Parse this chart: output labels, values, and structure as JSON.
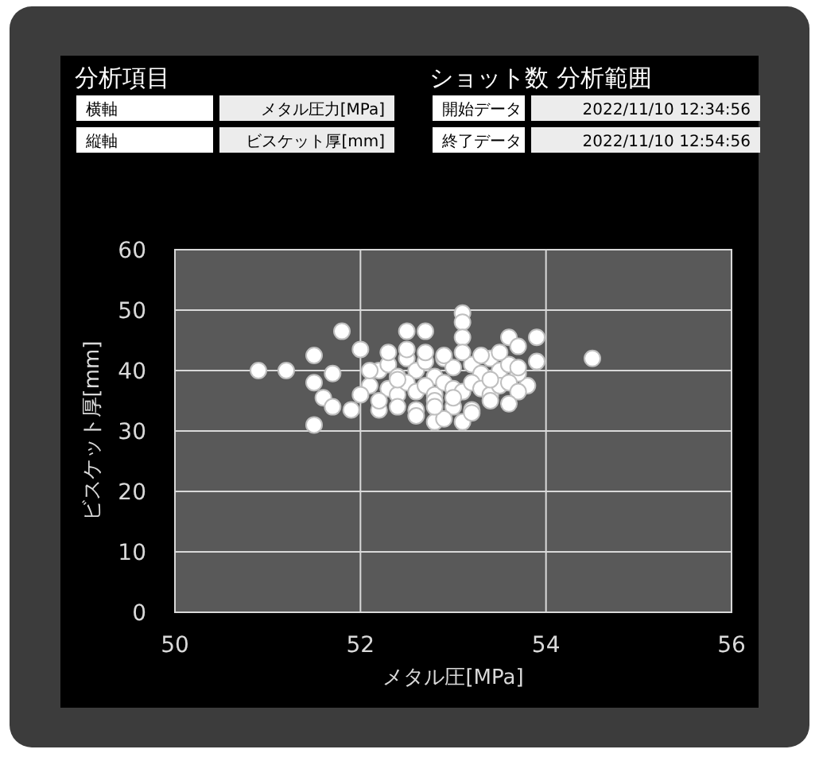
{
  "chart_data": {
    "type": "scatter",
    "xlabel": "メタル圧[MPa]",
    "ylabel": "ビスケット厚[mm]",
    "annotations": [
      "分析項目",
      "横軸",
      "メタル圧力[MPa]",
      "縦軸",
      "ビスケット厚[mm]",
      "ショット数",
      "分析範囲",
      "開始データ",
      "2022/11/10 12:34:56",
      "終了データ",
      "2022/11/10 12:54:56"
    ],
    "xlim": [
      50,
      56
    ],
    "xticks": [
      50,
      52,
      54,
      56
    ],
    "ylim": [
      0,
      60
    ],
    "yticks": [
      0,
      10,
      20,
      30,
      40,
      50,
      60
    ],
    "grid": true,
    "marker": "circle",
    "series": [
      {
        "color": "#ffffff",
        "x": [
          50.9,
          51.2,
          51.5,
          51.5,
          51.5,
          51.6,
          51.7,
          51.7,
          51.8,
          51.9,
          52.0,
          52.1,
          52.5,
          52.7,
          53.1,
          53.1,
          53.1,
          53.6,
          53.9,
          53.9,
          53.7,
          53.8,
          53.1,
          52.8,
          52.2,
          54.5,
          52.2,
          52.3,
          52.4,
          52.5,
          52.6,
          52.7,
          52.8,
          52.9,
          53.0,
          53.2,
          53.3,
          53.4,
          53.5,
          53.6,
          53.7,
          52.3,
          52.4,
          52.5,
          52.6,
          52.7,
          52.8,
          52.9,
          53.0,
          53.1,
          53.2,
          53.3,
          53.4,
          53.5,
          53.6,
          53.7,
          52.2,
          52.4,
          52.6,
          52.8,
          53.0,
          53.2,
          53.4,
          53.6,
          52.3,
          52.5,
          52.7,
          52.9,
          53.1,
          53.3,
          53.5,
          52.6,
          52.9,
          53.2,
          52.4,
          52.8,
          53.0,
          53.4,
          53.7,
          52.1,
          52.0
        ],
        "values": [
          40,
          40,
          31,
          42.5,
          38,
          35.5,
          39.5,
          34,
          46.5,
          33.5,
          43.5,
          37.5,
          46.5,
          46.5,
          49.5,
          48,
          45.5,
          45.5,
          45.5,
          41.5,
          44,
          37.5,
          31.5,
          31.5,
          33.5,
          42,
          40,
          41,
          39,
          42,
          40,
          41.5,
          39,
          42,
          40.5,
          41,
          39.5,
          42,
          40,
          41,
          39.5,
          37,
          36,
          38,
          36.5,
          37.5,
          36,
          38,
          37,
          36.5,
          38,
          37,
          36,
          37.5,
          38,
          36.5,
          35,
          34,
          33.5,
          35,
          34,
          33.5,
          35,
          34.5,
          43,
          43.5,
          43,
          42.5,
          43,
          42.5,
          43,
          32.5,
          32,
          33,
          38.5,
          34,
          35.5,
          38.5,
          40.5,
          40,
          36
        ]
      }
    ]
  }
}
